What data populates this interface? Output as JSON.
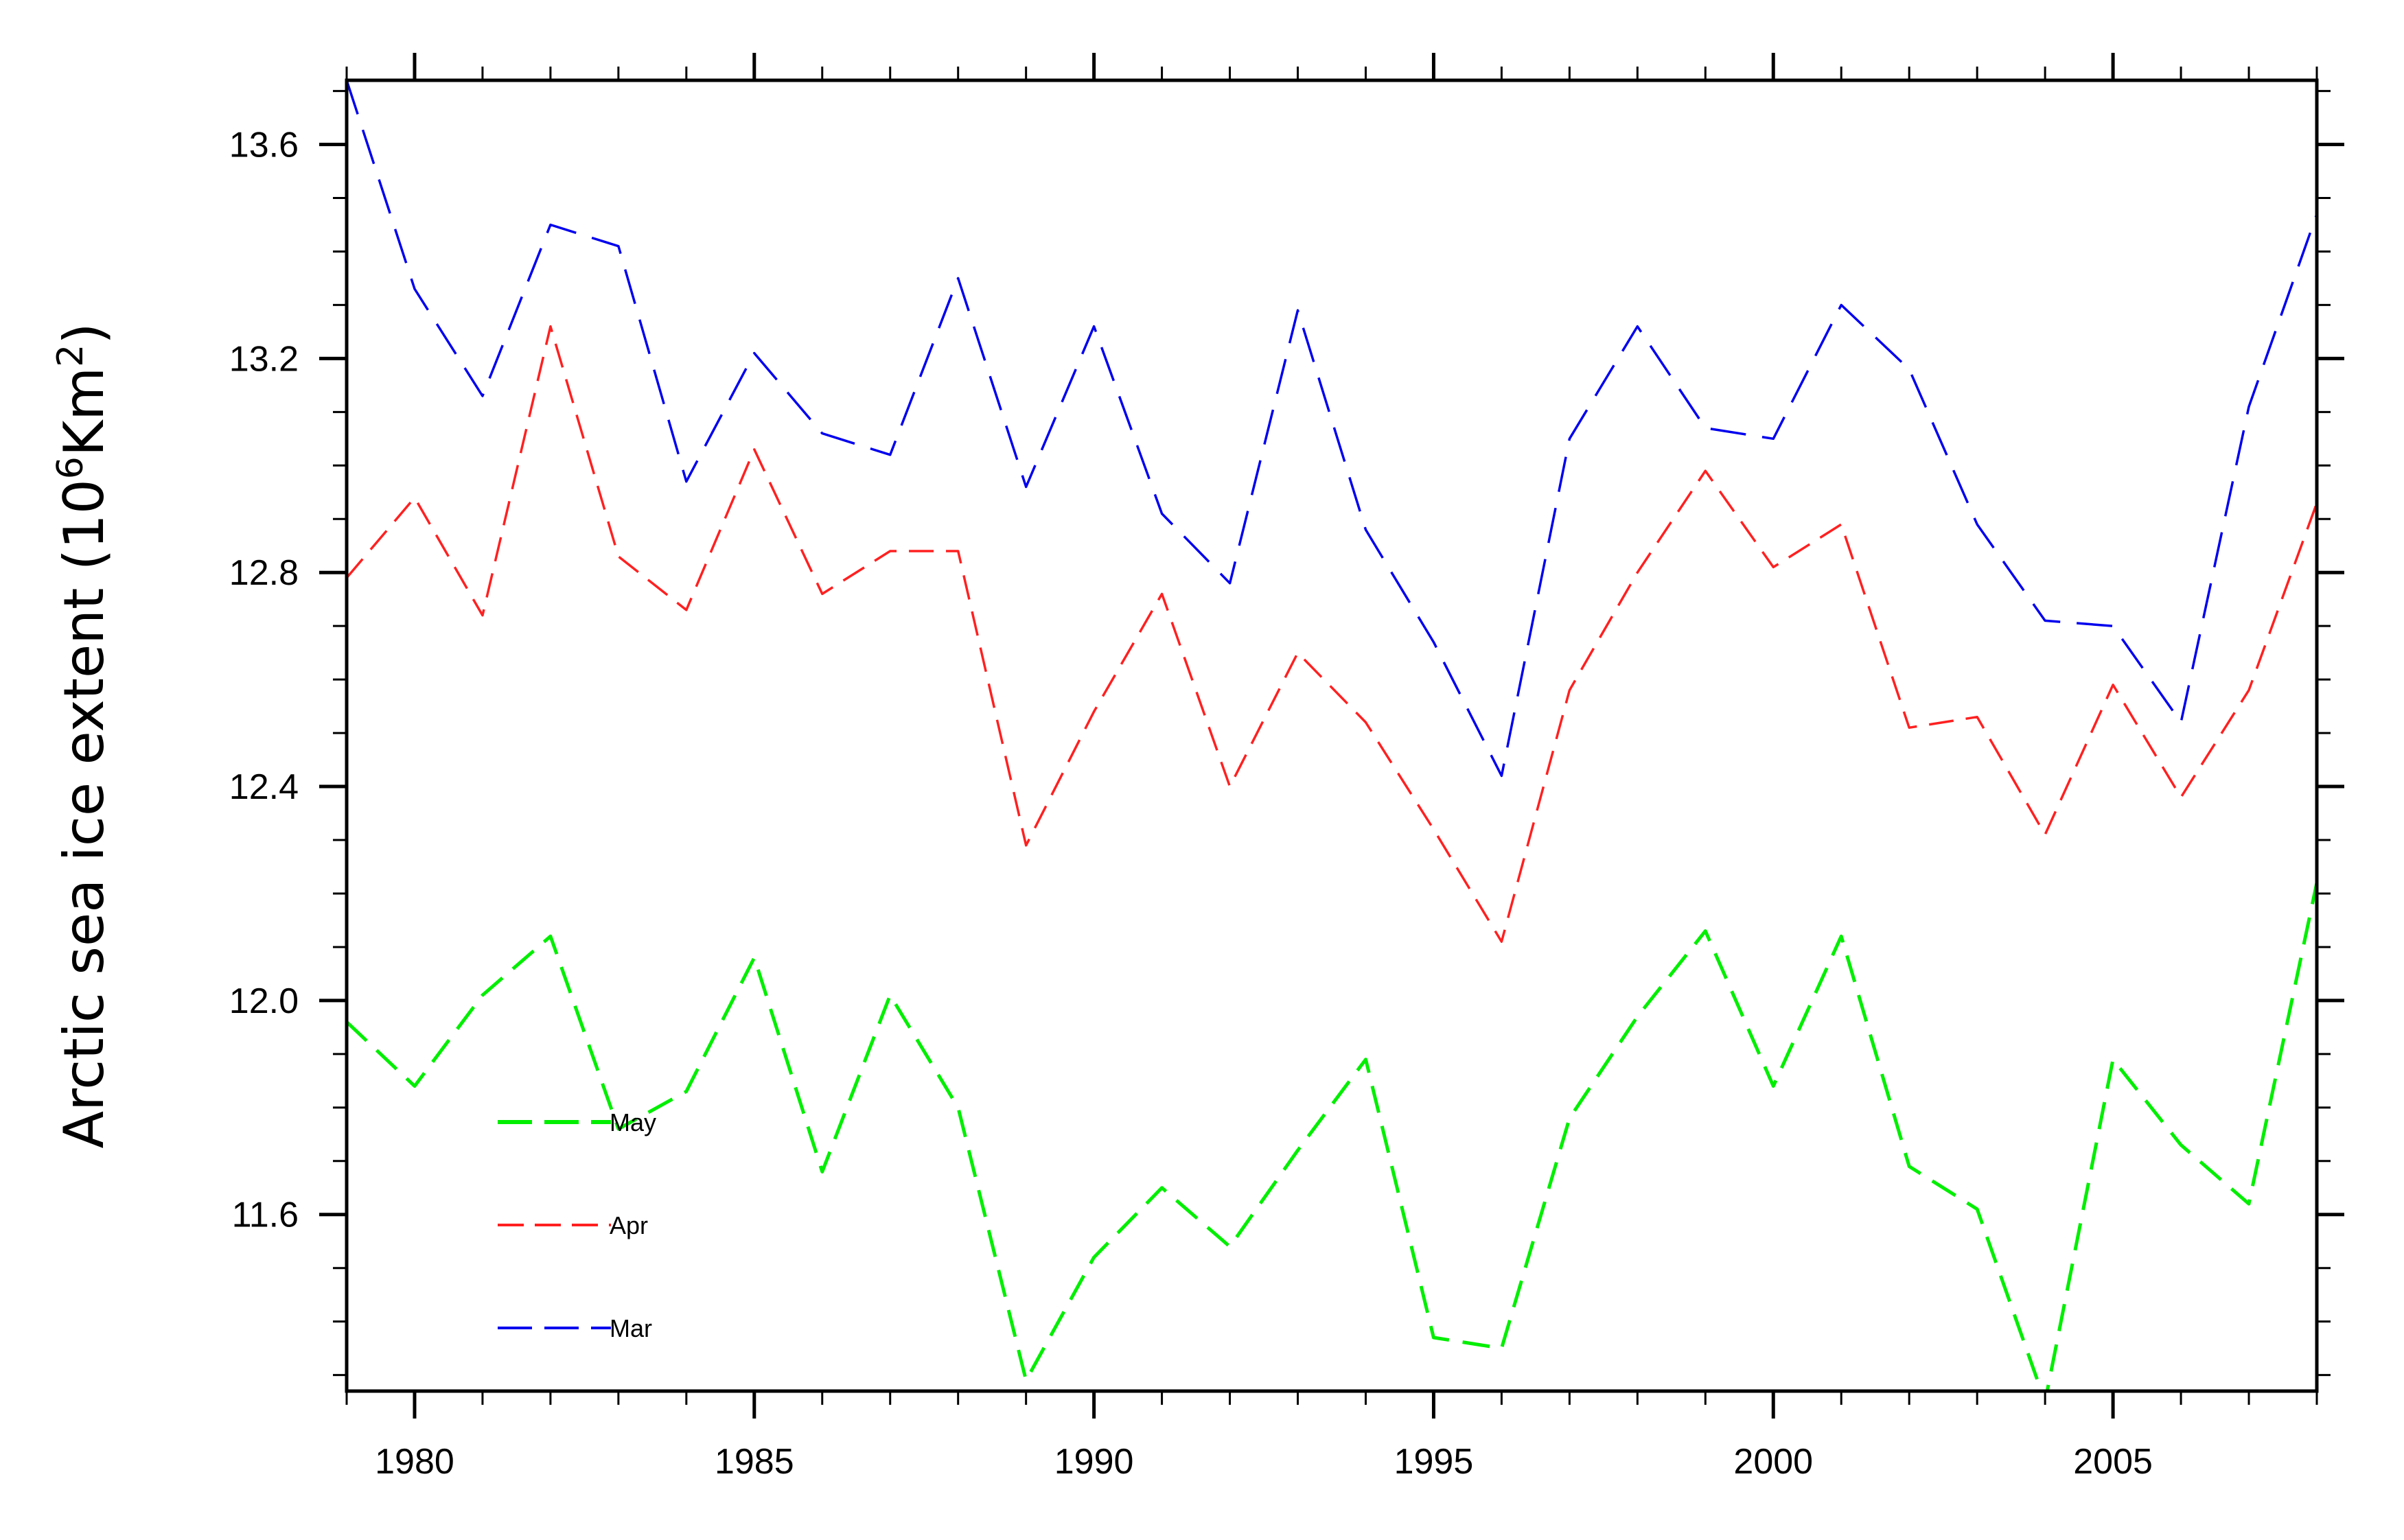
{
  "chart_data": {
    "type": "line",
    "title": "",
    "xlabel": "",
    "ylabel_main": "Arctic sea ice extent (10",
    "ylabel_sup1": "6",
    "ylabel_mid": "Km",
    "ylabel_sup2": "2",
    "ylabel_end": ")",
    "xlim": [
      1979,
      2008
    ],
    "ylim": [
      11.27,
      13.72
    ],
    "x_ticks": [
      1980,
      1985,
      1990,
      1995,
      2000,
      2005
    ],
    "y_ticks": [
      11.6,
      12.0,
      12.4,
      12.8,
      13.2,
      13.6
    ],
    "y_tick_labels": [
      "11.6",
      "12.0",
      "12.4",
      "12.8",
      "13.2",
      "13.6"
    ],
    "x_minor_step": 1,
    "y_minor_step": 0.1,
    "grid": false,
    "legend_position": "bottom-left",
    "x": [
      1979,
      1980,
      1981,
      1982,
      1983,
      1984,
      1985,
      1986,
      1987,
      1988,
      1989,
      1990,
      1991,
      1992,
      1993,
      1994,
      1995,
      1996,
      1997,
      1998,
      1999,
      2000,
      2001,
      2002,
      2003,
      2004,
      2005,
      2006,
      2007,
      2008
    ],
    "series": [
      {
        "name": "May",
        "color": "#00ee00",
        "values": [
          11.96,
          11.84,
          12.01,
          12.12,
          11.76,
          11.83,
          12.08,
          11.68,
          12.01,
          11.8,
          11.29,
          11.52,
          11.65,
          11.54,
          11.72,
          11.89,
          11.37,
          11.35,
          11.78,
          11.97,
          12.13,
          11.84,
          12.12,
          11.69,
          11.61,
          11.25,
          11.89,
          11.73,
          11.62,
          12.22
        ]
      },
      {
        "name": "Apr",
        "color": "#ff2020",
        "values": [
          12.79,
          12.94,
          12.72,
          13.26,
          12.83,
          12.73,
          13.03,
          12.76,
          12.84,
          12.84,
          12.29,
          12.54,
          12.76,
          12.4,
          12.65,
          12.52,
          12.32,
          12.11,
          12.58,
          12.8,
          12.99,
          12.81,
          12.89,
          12.51,
          12.53,
          12.31,
          12.59,
          12.38,
          12.58,
          12.93
        ]
      },
      {
        "name": "Mar",
        "color": "#0000ee",
        "values": [
          13.72,
          13.33,
          13.13,
          13.45,
          13.41,
          12.97,
          13.21,
          13.06,
          13.02,
          13.35,
          12.96,
          13.26,
          12.91,
          12.78,
          13.29,
          12.88,
          12.67,
          12.42,
          13.05,
          13.26,
          13.07,
          13.05,
          13.3,
          13.18,
          12.89,
          12.71,
          12.7,
          12.52,
          13.11,
          13.47
        ]
      }
    ],
    "legend_order": [
      "May",
      "Apr",
      "Mar"
    ]
  }
}
